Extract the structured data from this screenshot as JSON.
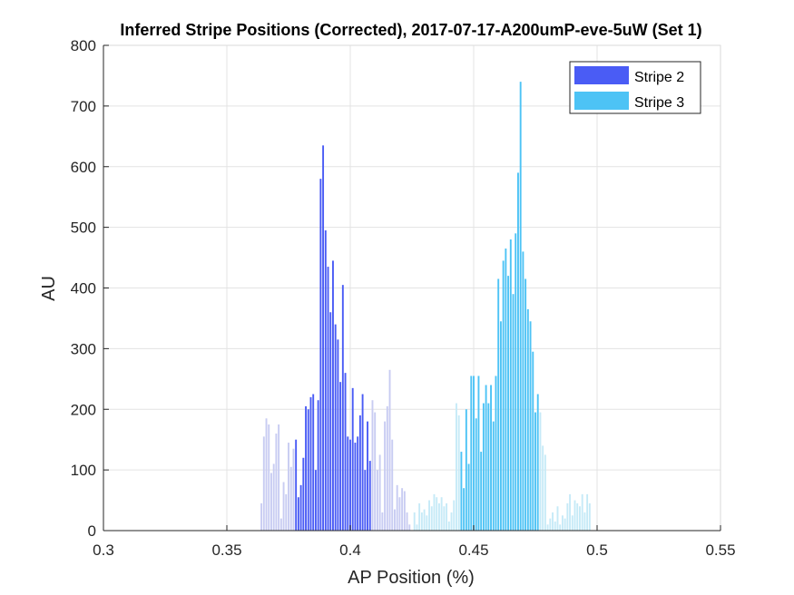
{
  "chart_data": {
    "type": "bar",
    "title": "Inferred Stripe Positions (Corrected), 2017-07-17-A200umP-eve-5uW (Set 1)",
    "xlabel": "AP Position (%)",
    "ylabel": "AU",
    "xlim": [
      0.3,
      0.55
    ],
    "ylim": [
      0,
      800
    ],
    "xticks": [
      "0.3",
      "0.35",
      "0.4",
      "0.45",
      "0.5",
      "0.55"
    ],
    "yticks": [
      "0",
      "100",
      "200",
      "300",
      "400",
      "500",
      "600",
      "700",
      "800"
    ],
    "grid": true,
    "legend_position": "top-right",
    "series": [
      {
        "name": "Stripe 2",
        "color": "#4a5cf5",
        "faded_color": "#c8ccf2",
        "x_start": 0.364,
        "x_step": 0.001,
        "highlight_range": [
          0.378,
          0.408
        ],
        "values": [
          45,
          155,
          185,
          175,
          95,
          110,
          160,
          175,
          20,
          80,
          60,
          145,
          105,
          135,
          150,
          55,
          75,
          120,
          205,
          200,
          220,
          225,
          100,
          215,
          580,
          635,
          495,
          435,
          360,
          445,
          340,
          315,
          245,
          405,
          260,
          155,
          150,
          235,
          145,
          155,
          190,
          225,
          100,
          180,
          115,
          215,
          195,
          100,
          125,
          30,
          180,
          205,
          265,
          150,
          35,
          75,
          55,
          70,
          65,
          30,
          10
        ]
      },
      {
        "name": "Stripe 3",
        "color": "#4dc3f5",
        "faded_color": "#c6eaf7",
        "x_start": 0.426,
        "x_step": 0.001,
        "highlight_range": [
          0.445,
          0.476
        ],
        "values": [
          30,
          10,
          45,
          30,
          35,
          25,
          50,
          40,
          60,
          55,
          45,
          55,
          40,
          45,
          15,
          30,
          50,
          210,
          190,
          130,
          70,
          200,
          110,
          255,
          255,
          185,
          255,
          130,
          210,
          240,
          210,
          240,
          180,
          255,
          415,
          345,
          445,
          465,
          420,
          480,
          390,
          490,
          590,
          740,
          460,
          415,
          365,
          345,
          295,
          195,
          225,
          195,
          140,
          125,
          10,
          20,
          30,
          15,
          40,
          10,
          25,
          20,
          45,
          60,
          25,
          50,
          45,
          40,
          60,
          30,
          60,
          45
        ]
      }
    ]
  }
}
